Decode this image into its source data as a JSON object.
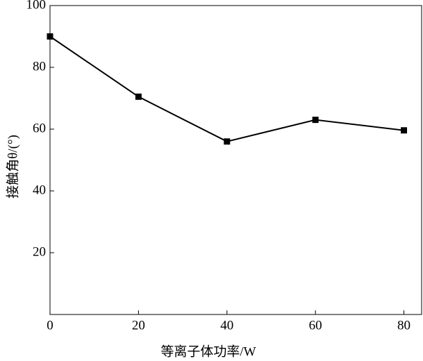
{
  "chart_data": {
    "type": "line",
    "x_label": "等离子体功率/W",
    "y_label": "接触角θ/(°)",
    "x": [
      0,
      20,
      40,
      60,
      80
    ],
    "series": [
      {
        "color": "#000000",
        "values": [
          90,
          70.5,
          56,
          63,
          59.6
        ]
      }
    ],
    "xlim": [
      0,
      84
    ],
    "xticks": [
      0,
      20,
      40,
      60,
      80
    ],
    "ylim": [
      0,
      100
    ],
    "yticks": [
      20,
      40,
      60,
      80,
      100
    ],
    "grid": false
  }
}
